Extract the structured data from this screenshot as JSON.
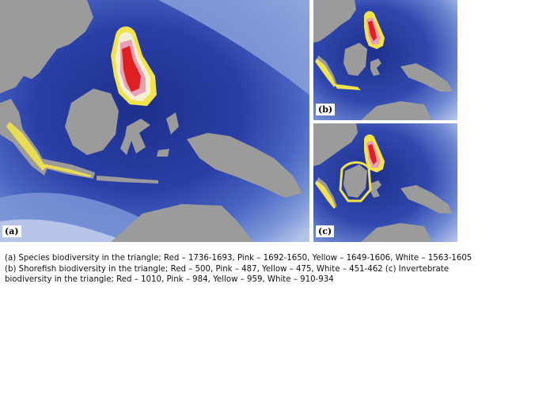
{
  "panels": [
    {
      "label": "(a)"
    },
    {
      "label": "(b)"
    },
    {
      "label": "(c)"
    }
  ],
  "colors": {
    "ocean_deep": "#1e2f8c",
    "ocean_mid": "#3f5cbf",
    "ocean_light": "#7f98d8",
    "ocean_pale": "#b6c4ea",
    "land": "#9b9b9b",
    "biodiversity_red": "#e02020",
    "biodiversity_pink": "#e8a0b4",
    "biodiversity_yellow": "#f2e34a",
    "biodiversity_white": "#f3efd6"
  },
  "caption": "(a) Species biodiversity in the triangle; Red – 1736-1693, Pink – 1692-1650, Yellow – 1649-1606, White – 1563-1605 (b) Shorefish biodiversity in the triangle; Red – 500, Pink – 487, Yellow – 475, White – 451-462 (c) Invertebrate biodiversity in the triangle; Red – 1010, Pink – 984, Yellow – 959, White – 910-934"
}
